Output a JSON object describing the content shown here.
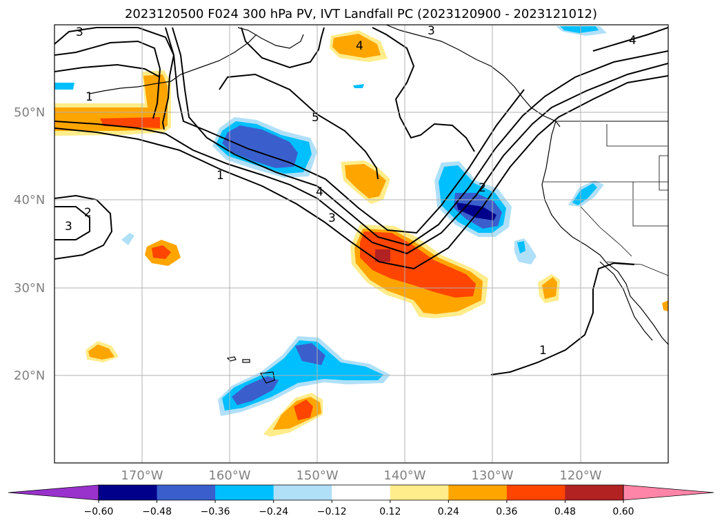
{
  "title": "2023120500 F024 300 hPa PV, IVT Landfall PC (2023120900 - 2023121012)",
  "map": {
    "lon_range": [
      -180,
      -110
    ],
    "lat_range": [
      10,
      60
    ],
    "lat_labels": [
      "20°N",
      "30°N",
      "40°N",
      "50°N"
    ],
    "lon_labels": [
      "170°W",
      "160°W",
      "150°W",
      "140°W",
      "130°W",
      "120°W"
    ],
    "contour_labels": [
      "3",
      "1",
      "5",
      "4",
      "3",
      "2",
      "1",
      "2",
      "3",
      "4",
      "1",
      "3",
      "4"
    ]
  },
  "colorbar": {
    "colors": [
      "#9932cc",
      "#00008b",
      "#3a5fcd",
      "#00bfff",
      "#b0e0f8",
      "#ffffff",
      "#ffec8b",
      "#ffa500",
      "#ff4500",
      "#b22222",
      "#ff85a8"
    ],
    "tick_labels": [
      "−0.60",
      "−0.48",
      "−0.36",
      "−0.24",
      "−0.12",
      "0.12",
      "0.24",
      "0.36",
      "0.48",
      "0.60"
    ],
    "extend": "both"
  }
}
